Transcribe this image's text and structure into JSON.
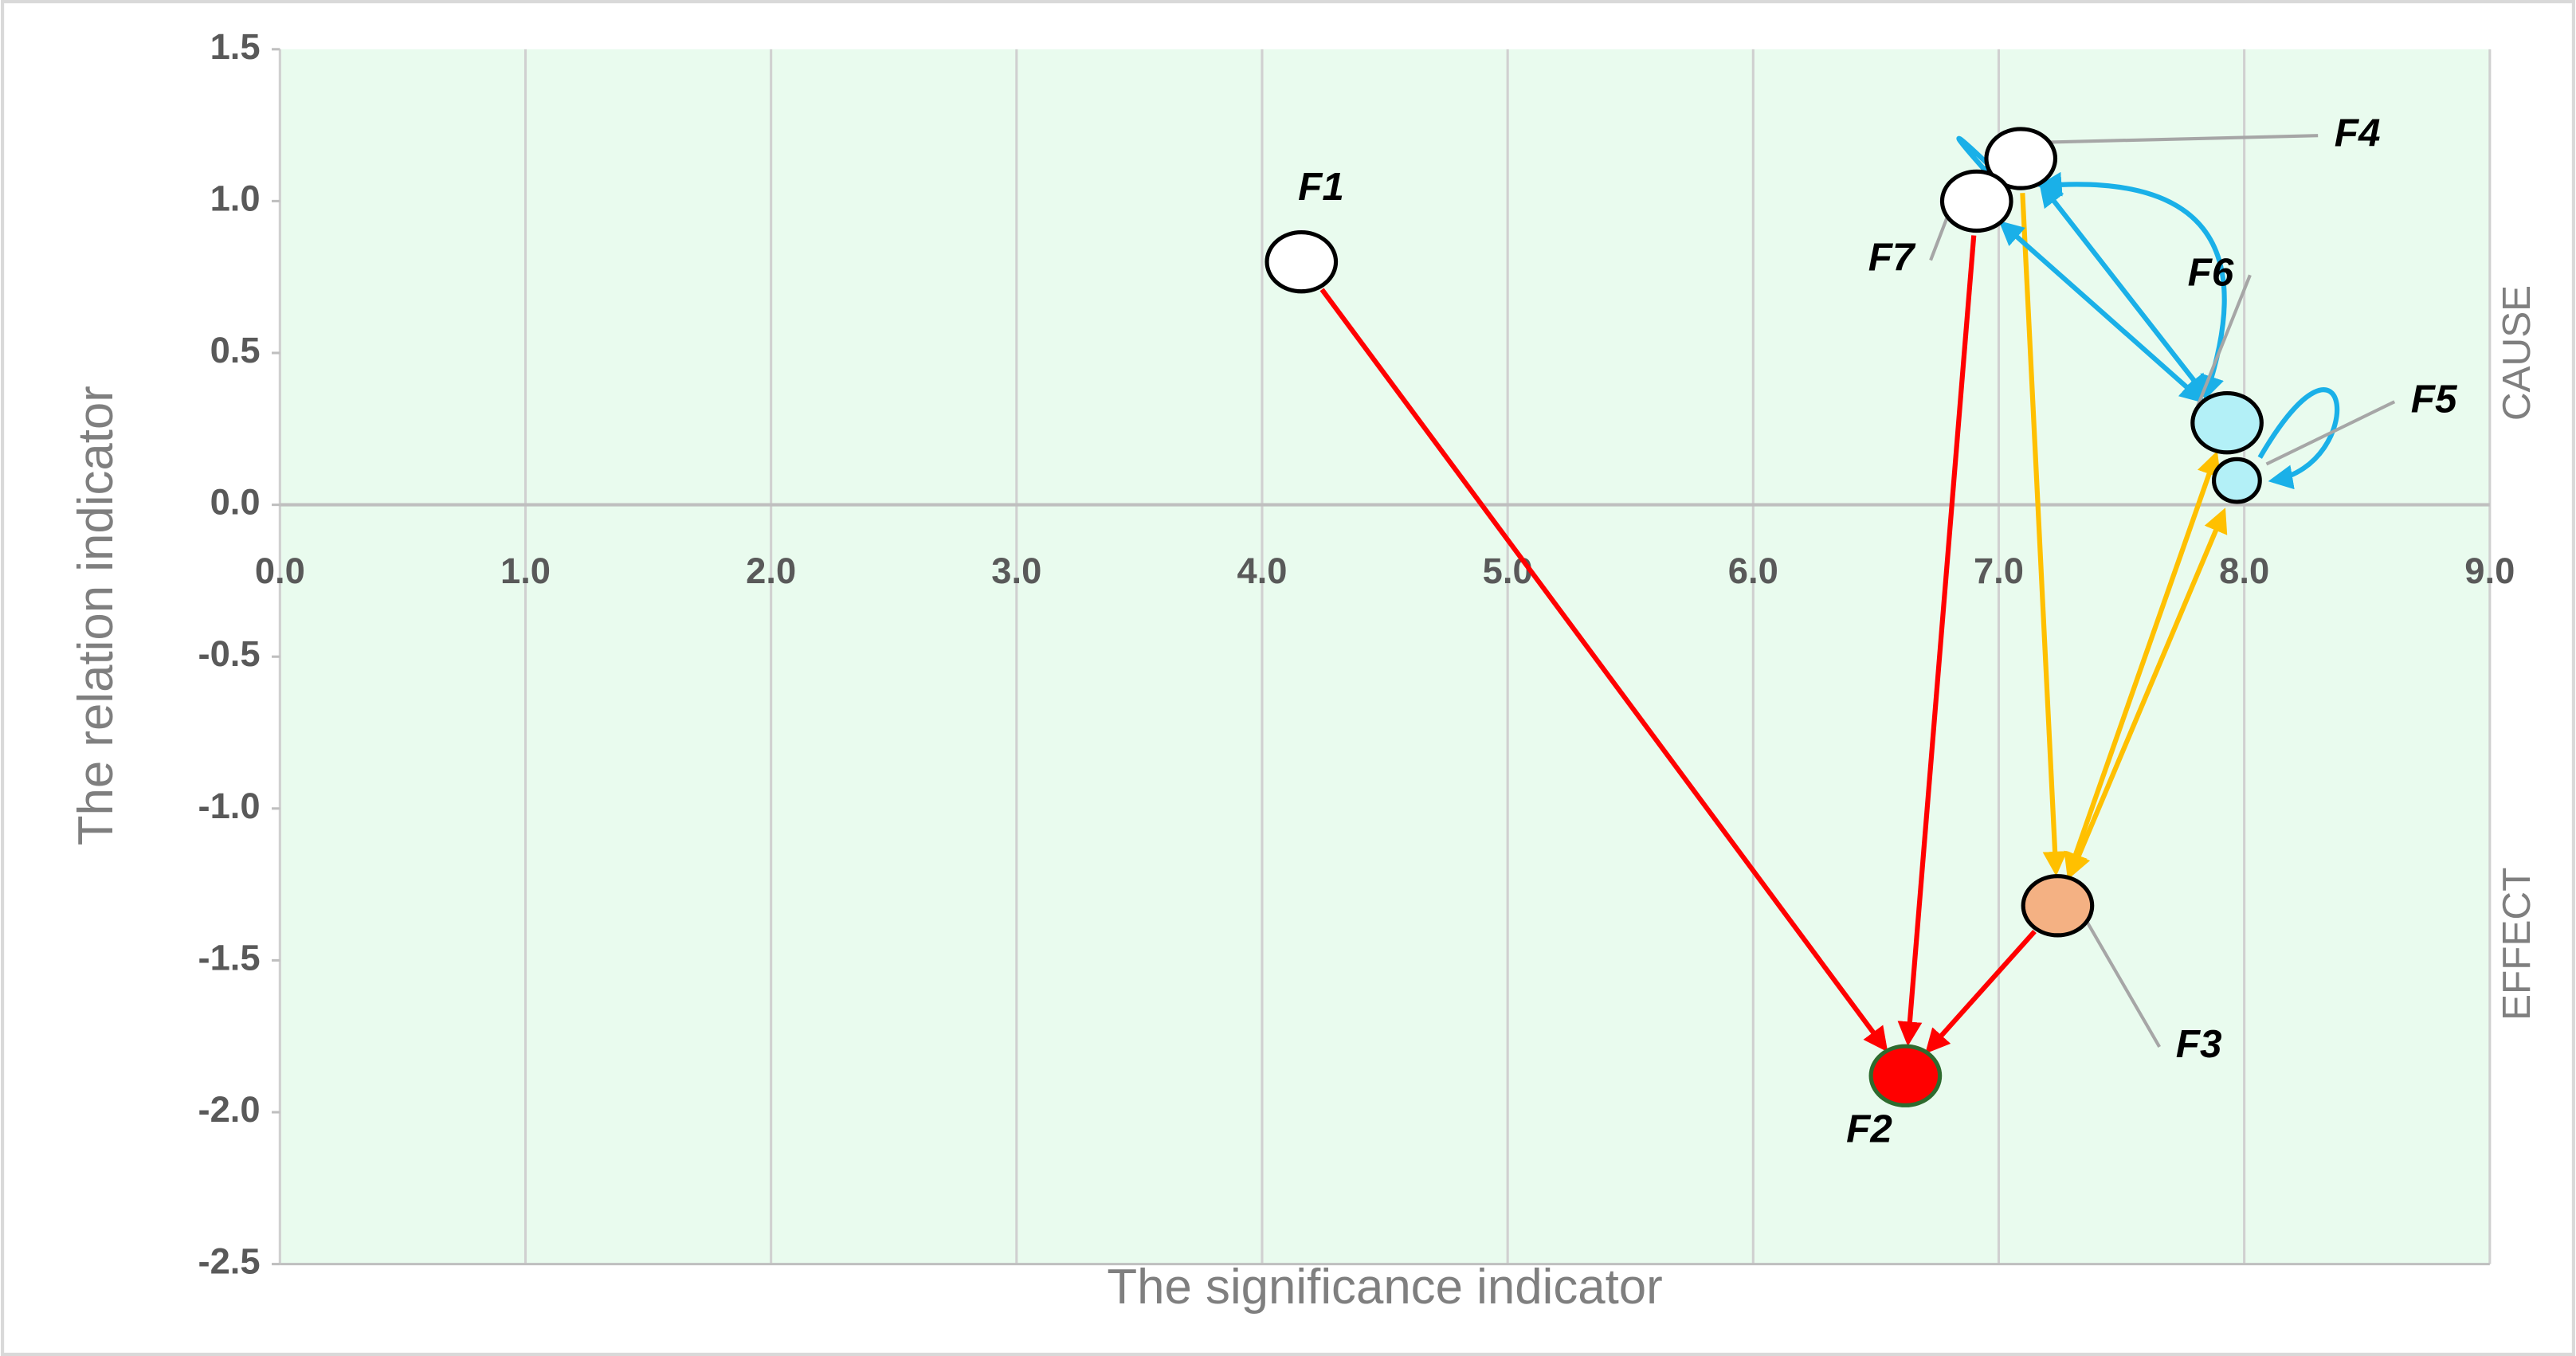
{
  "chart_data": {
    "type": "scatter",
    "x_label": "The significance indicator",
    "y_label": "The relation indicator",
    "upper_region_label": "CAUSE",
    "lower_region_label": "EFFECT",
    "xlim": [
      0,
      9
    ],
    "ylim": [
      -2.5,
      1.5
    ],
    "xticks": [
      {
        "value": 0,
        "label": "0.0"
      },
      {
        "value": 1,
        "label": "1.0"
      },
      {
        "value": 2,
        "label": "2.0"
      },
      {
        "value": 3,
        "label": "3.0"
      },
      {
        "value": 4,
        "label": "4.0"
      },
      {
        "value": 5,
        "label": "5.0"
      },
      {
        "value": 6,
        "label": "6.0"
      },
      {
        "value": 7,
        "label": "7.0"
      },
      {
        "value": 8,
        "label": "8.0"
      },
      {
        "value": 9,
        "label": "9.0"
      }
    ],
    "yticks": [
      1.5,
      {
        "value": 1,
        "label": "1.0"
      },
      0.5,
      {
        "value": 0,
        "label": "0.0"
      },
      -0.5,
      {
        "value": -1,
        "label": "-1.0"
      },
      -1.5,
      {
        "value": -2,
        "label": "-2.0"
      },
      -2.5
    ],
    "grid": "vertical",
    "background": "#e9fbee",
    "labels": [
      "F1",
      "F2",
      "F3",
      "F4",
      "F5",
      "F6",
      "F7"
    ],
    "x": [
      4.16,
      6.62,
      7.24,
      7.09,
      7.97,
      7.93,
      6.91
    ],
    "y": [
      0.8,
      -1.88,
      -1.32,
      1.14,
      0.08,
      0.27,
      1.0
    ],
    "colors": [
      "#ffffff",
      "#ff0000",
      "#f4b183",
      "#ffffff",
      "#b3f0f7",
      "#b3f0f7",
      "#ffffff"
    ],
    "links": [
      {
        "from": "F1",
        "to": "F2",
        "color": "#ff0000",
        "both": false,
        "curved": false
      },
      {
        "from": "F7",
        "to": "F2",
        "color": "#ff0000",
        "both": false,
        "curved": false
      },
      {
        "from": "F3",
        "to": "F2",
        "color": "#ff0000",
        "both": false,
        "curved": false
      },
      {
        "from": "F4",
        "to": "F3",
        "color": "#ffc000",
        "both": false,
        "curved": false
      },
      {
        "from": "F3",
        "to": "F6",
        "color": "#ffc000",
        "both": true,
        "curved": false
      },
      {
        "from": "F3",
        "to": "F5",
        "color": "#ffc000",
        "both": true,
        "curved": false
      },
      {
        "from": "F4",
        "to": "F6",
        "color": "#1ab0e8",
        "both": true,
        "curved": false
      },
      {
        "from": "F7",
        "to": "F6",
        "color": "#1ab0e8",
        "both": true,
        "curved": false
      },
      {
        "from": "F7",
        "to": "F4",
        "color": "#1ab0e8",
        "both": true,
        "curved": true
      },
      {
        "from": "F4",
        "to": "F6",
        "color": "#1ab0e8",
        "both": true,
        "curved": true
      },
      {
        "from": "F5",
        "to": "F5",
        "color": "#1ab0e8",
        "both": false,
        "curved": true
      }
    ]
  }
}
